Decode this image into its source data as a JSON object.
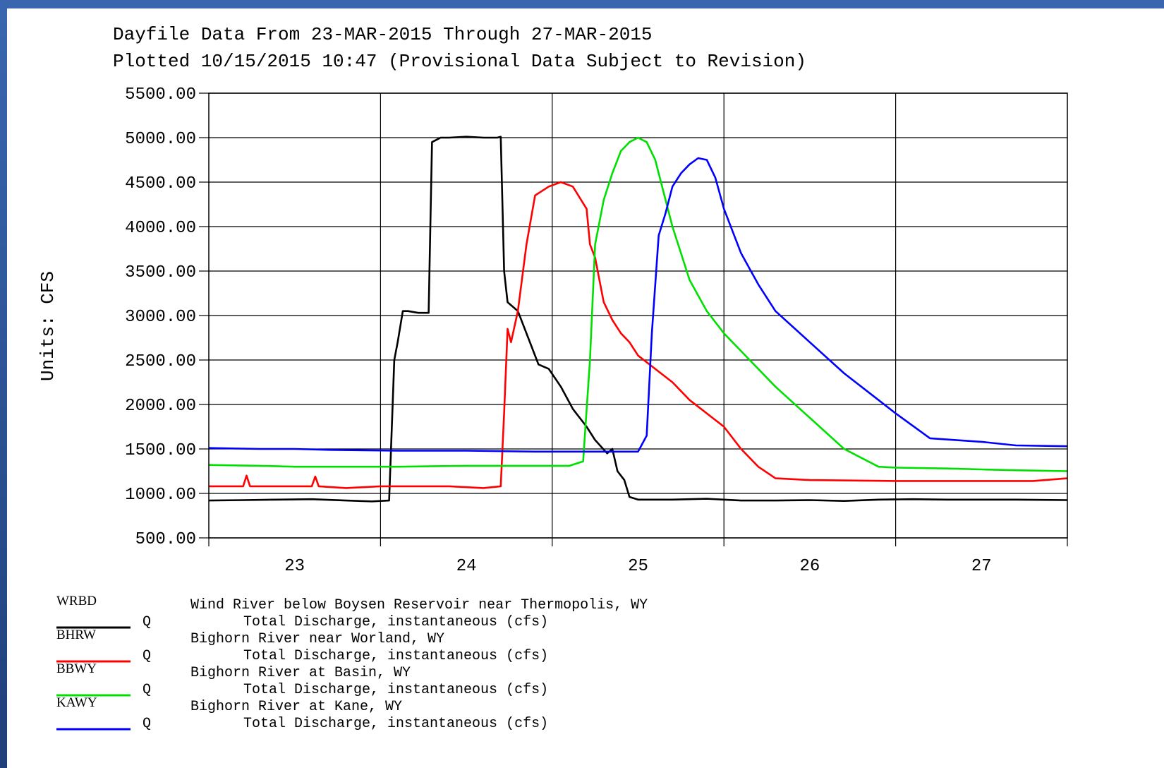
{
  "chart_data": {
    "type": "line",
    "title": "Dayfile Data From 23-MAR-2015 Through 27-MAR-2015",
    "subtitle": "Plotted 10/15/2015 10:47 (Provisional Data Subject to Revision)",
    "ylabel": "Units: CFS",
    "xlabel": "",
    "xlim": [
      22.5,
      27.5
    ],
    "ylim": [
      500,
      5500
    ],
    "yticks": [
      "5500.00",
      "5000.00",
      "4500.00",
      "4000.00",
      "3500.00",
      "3000.00",
      "2500.00",
      "2000.00",
      "1500.00",
      "1000.00",
      "500.00"
    ],
    "ytick_values": [
      5500,
      5000,
      4500,
      4000,
      3500,
      3000,
      2500,
      2000,
      1500,
      1000,
      500
    ],
    "xticks": [
      "23",
      "24",
      "25",
      "26",
      "27"
    ],
    "xtick_values": [
      23,
      24,
      25,
      26,
      27
    ],
    "grid": true,
    "legend_placement": "bottom",
    "series": [
      {
        "code": "WRBD",
        "name": "Wind River below Boysen Reservoir near Thermopolis, WY",
        "param": "Total Discharge, instantaneous (cfs)",
        "color": "#000000",
        "x": [
          22.5,
          22.7,
          22.9,
          23.1,
          23.3,
          23.45,
          23.55,
          23.58,
          23.6,
          23.63,
          23.66,
          23.72,
          23.78,
          23.8,
          23.85,
          23.9,
          24.0,
          24.1,
          24.18,
          24.2,
          24.22,
          24.24,
          24.3,
          24.38,
          24.42,
          24.48,
          24.55,
          24.62,
          24.7,
          24.75,
          24.82,
          24.85,
          24.88,
          24.92,
          24.95,
          25.0,
          25.2,
          25.4,
          25.6,
          25.8,
          26.0,
          26.2,
          26.4,
          26.6,
          26.8,
          27.0,
          27.2,
          27.5
        ],
        "y": [
          920,
          925,
          930,
          935,
          920,
          910,
          920,
          2500,
          2700,
          3050,
          3050,
          3030,
          3030,
          4950,
          5000,
          5000,
          5010,
          5000,
          5000,
          5010,
          3500,
          3150,
          3050,
          2650,
          2450,
          2400,
          2200,
          1950,
          1750,
          1600,
          1450,
          1500,
          1250,
          1150,
          960,
          930,
          930,
          940,
          920,
          920,
          925,
          915,
          930,
          935,
          930,
          930,
          930,
          925
        ]
      },
      {
        "code": "BHRW",
        "name": "Bighorn River near Worland, WY",
        "param": "Total Discharge, instantaneous (cfs)",
        "color": "#ff0000",
        "x": [
          22.5,
          22.7,
          22.72,
          22.74,
          22.9,
          23.1,
          23.12,
          23.14,
          23.3,
          23.5,
          23.7,
          23.9,
          24.1,
          24.2,
          24.22,
          24.24,
          24.26,
          24.3,
          24.35,
          24.4,
          24.48,
          24.55,
          24.62,
          24.7,
          24.72,
          24.75,
          24.8,
          24.85,
          24.9,
          24.95,
          25.0,
          25.1,
          25.2,
          25.3,
          25.5,
          25.6,
          25.7,
          25.8,
          25.9,
          26.0,
          26.5,
          27.0,
          27.3,
          27.5
        ],
        "y": [
          1080,
          1080,
          1200,
          1080,
          1080,
          1080,
          1190,
          1080,
          1060,
          1080,
          1080,
          1080,
          1060,
          1080,
          1900,
          2850,
          2700,
          3050,
          3800,
          4350,
          4450,
          4500,
          4450,
          4200,
          3800,
          3650,
          3150,
          2950,
          2800,
          2700,
          2550,
          2400,
          2250,
          2050,
          1750,
          1500,
          1300,
          1170,
          1160,
          1150,
          1140,
          1140,
          1140,
          1170
        ]
      },
      {
        "code": "BBWY",
        "name": "Bighorn River at Basin, WY",
        "param": "Total Discharge, instantaneous (cfs)",
        "color": "#00e000",
        "x": [
          22.5,
          22.8,
          23.0,
          23.2,
          23.6,
          24.0,
          24.4,
          24.6,
          24.68,
          24.72,
          24.75,
          24.8,
          24.85,
          24.9,
          24.95,
          25.0,
          25.05,
          25.1,
          25.2,
          25.3,
          25.4,
          25.5,
          25.6,
          25.8,
          26.0,
          26.2,
          26.4,
          26.5,
          26.8,
          27.0,
          27.2,
          27.5
        ],
        "y": [
          1320,
          1310,
          1300,
          1300,
          1300,
          1310,
          1310,
          1310,
          1360,
          2500,
          3800,
          4300,
          4600,
          4850,
          4950,
          5000,
          4950,
          4750,
          4000,
          3400,
          3050,
          2800,
          2600,
          2200,
          1850,
          1500,
          1300,
          1290,
          1280,
          1270,
          1260,
          1250
        ]
      },
      {
        "code": "KAWY",
        "name": "Bighorn River at Kane, WY",
        "param": "Total Discharge, instantaneous (cfs)",
        "color": "#0000ff",
        "x": [
          22.5,
          22.8,
          23.0,
          23.2,
          23.6,
          24.0,
          24.4,
          24.8,
          25.0,
          25.05,
          25.08,
          25.12,
          25.16,
          25.2,
          25.25,
          25.3,
          25.35,
          25.4,
          25.45,
          25.5,
          25.6,
          25.7,
          25.8,
          26.0,
          26.2,
          26.4,
          26.5,
          26.7,
          27.0,
          27.2,
          27.5
        ],
        "y": [
          1510,
          1500,
          1500,
          1490,
          1480,
          1480,
          1470,
          1470,
          1470,
          1650,
          2800,
          3900,
          4150,
          4450,
          4600,
          4700,
          4770,
          4750,
          4550,
          4200,
          3700,
          3350,
          3050,
          2700,
          2350,
          2050,
          1900,
          1620,
          1580,
          1540,
          1530
        ]
      }
    ]
  },
  "legend": [
    {
      "code": "WRBD",
      "q": "Q",
      "name": "Wind River below Boysen Reservoir near Thermopolis, WY",
      "param": "Total Discharge, instantaneous (cfs)"
    },
    {
      "code": "BHRW",
      "q": "Q",
      "name": "Bighorn River near Worland, WY",
      "param": "Total Discharge, instantaneous (cfs)"
    },
    {
      "code": "BBWY",
      "q": "Q",
      "name": "Bighorn River at Basin, WY",
      "param": "Total Discharge, instantaneous (cfs)"
    },
    {
      "code": "KAWY",
      "q": "Q",
      "name": "Bighorn River at Kane, WY",
      "param": "Total Discharge, instantaneous (cfs)"
    }
  ]
}
